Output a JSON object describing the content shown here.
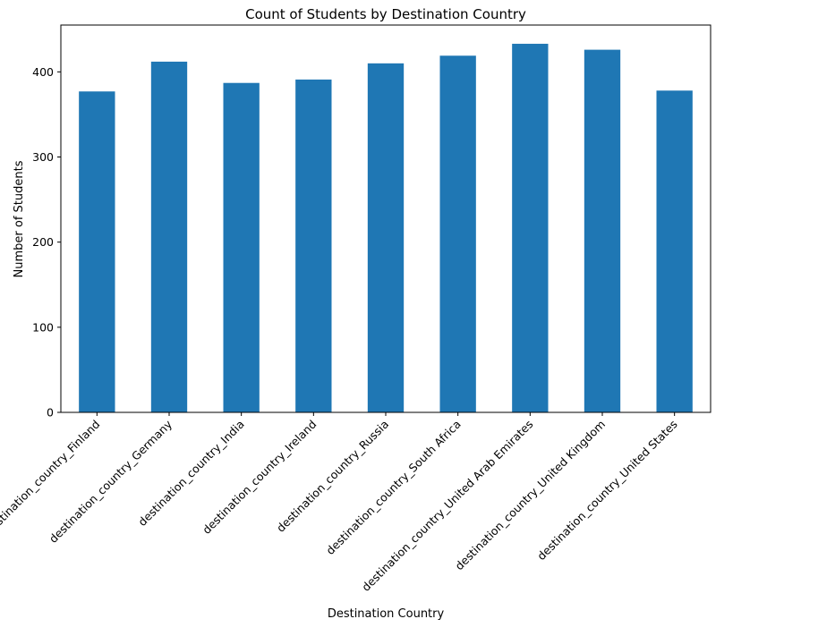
{
  "chart_data": {
    "type": "bar",
    "title": "Count of Students by Destination Country",
    "xlabel": "Destination Country",
    "ylabel": "Number of Students",
    "categories": [
      "destination_country_Finland",
      "destination_country_Germany",
      "destination_country_India",
      "destination_country_Ireland",
      "destination_country_Russia",
      "destination_country_South Africa",
      "destination_country_United Arab Emirates",
      "destination_country_United Kingdom",
      "destination_country_United States"
    ],
    "values": [
      377,
      412,
      387,
      391,
      410,
      419,
      433,
      426,
      378
    ],
    "ylim": [
      0,
      455
    ],
    "yticks": [
      0,
      100,
      200,
      300,
      400
    ],
    "grid": false,
    "bar_color": "#1f77b4"
  }
}
